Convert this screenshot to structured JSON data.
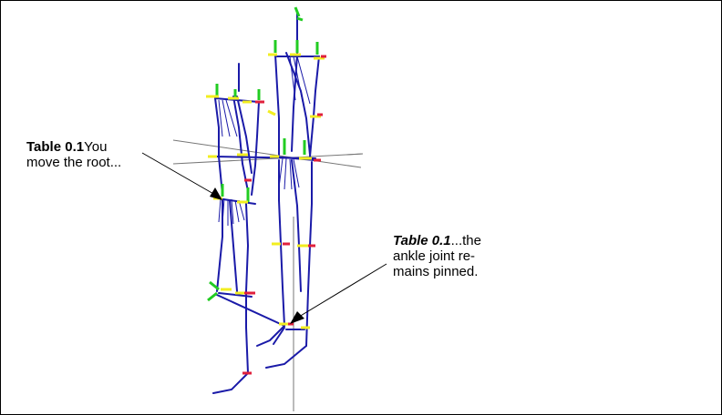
{
  "callouts": {
    "left": {
      "tag": "Table 0.1",
      "line1_rest": "You",
      "line2": "move the root..."
    },
    "right": {
      "tag": "Table 0.1",
      "line1_rest": "...the",
      "line2": "ankle joint re-",
      "line3": "mains pinned."
    }
  },
  "colors": {
    "bone": "#1a1aa8",
    "axis_x": "#e0203c",
    "axis_y": "#22cc22",
    "axis_z": "#f2ee20",
    "ground_line": "#777777",
    "arrow": "#000000"
  }
}
